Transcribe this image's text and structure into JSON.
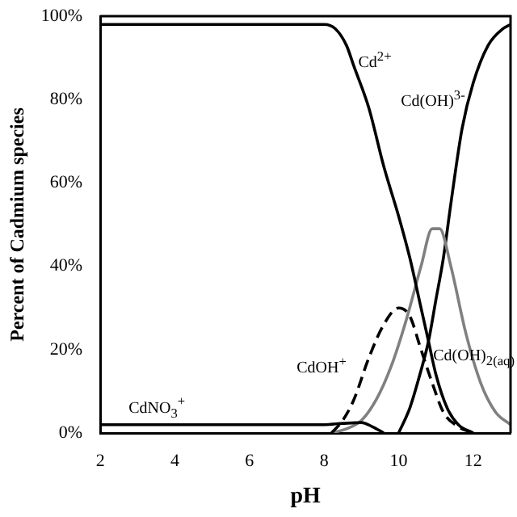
{
  "chart_data": {
    "type": "line",
    "xlabel": "pH",
    "ylabel": "Percent of Cadmium species",
    "xlim": [
      2,
      13
    ],
    "xticks": [
      2,
      4,
      6,
      8,
      10,
      12
    ],
    "ylim": [
      0,
      100
    ],
    "yticks": [
      {
        "value": 0,
        "label": "0%"
      },
      {
        "value": 20,
        "label": "20%"
      },
      {
        "value": 40,
        "label": "40%"
      },
      {
        "value": 60,
        "label": "60%"
      },
      {
        "value": 80,
        "label": "80%"
      },
      {
        "value": 100,
        "label": "100%"
      }
    ],
    "grid": false,
    "legend": false,
    "marker": "none",
    "series": [
      {
        "name": "Cd$^{2+}$",
        "color": "#000000",
        "x": [
          2,
          8,
          8.3,
          8.6,
          8.8,
          9.2,
          9.6,
          10,
          10.3,
          10.6,
          10.8,
          11,
          11.3,
          11.6,
          12
        ],
        "values": [
          98,
          98,
          97,
          93,
          88,
          78,
          64,
          52,
          42,
          30,
          22,
          14,
          6,
          2,
          0
        ]
      },
      {
        "name": "CdNO$_{3}$$^{+}$",
        "color": "#000000",
        "x": [
          2,
          8,
          8.5,
          9,
          9.3,
          9.6
        ],
        "values": [
          2,
          2,
          2.3,
          2.5,
          1.5,
          0
        ]
      },
      {
        "name": "CdOH$^{+}$",
        "color": "#000000",
        "line_style": "dashed",
        "x": [
          8.2,
          8.5,
          8.8,
          9.2,
          9.6,
          10,
          10.3,
          10.6,
          10.9,
          11.2,
          11.6,
          12
        ],
        "values": [
          0,
          3,
          8,
          18,
          26,
          30,
          28,
          20,
          12,
          5,
          1.5,
          0
        ]
      },
      {
        "name": "Cd(OH)$_{2(aq)}$",
        "color": "#808080",
        "x": [
          8.2,
          8.6,
          9,
          9.4,
          9.8,
          10.2,
          10.6,
          10.9,
          11.1,
          11.4,
          11.8,
          12.2,
          12.6,
          13
        ],
        "values": [
          0,
          1,
          3,
          8,
          16,
          27,
          40,
          49,
          49,
          40,
          24,
          12,
          5,
          2
        ]
      },
      {
        "name": "Cd(OH)$^{3-}$",
        "color": "#000000",
        "x": [
          10,
          10.3,
          10.6,
          10.8,
          11,
          11.2,
          11.4,
          11.7,
          12,
          12.4,
          12.8,
          13
        ],
        "values": [
          0,
          6,
          15,
          22,
          32,
          42,
          55,
          73,
          84,
          93,
          97,
          98
        ]
      }
    ]
  }
}
